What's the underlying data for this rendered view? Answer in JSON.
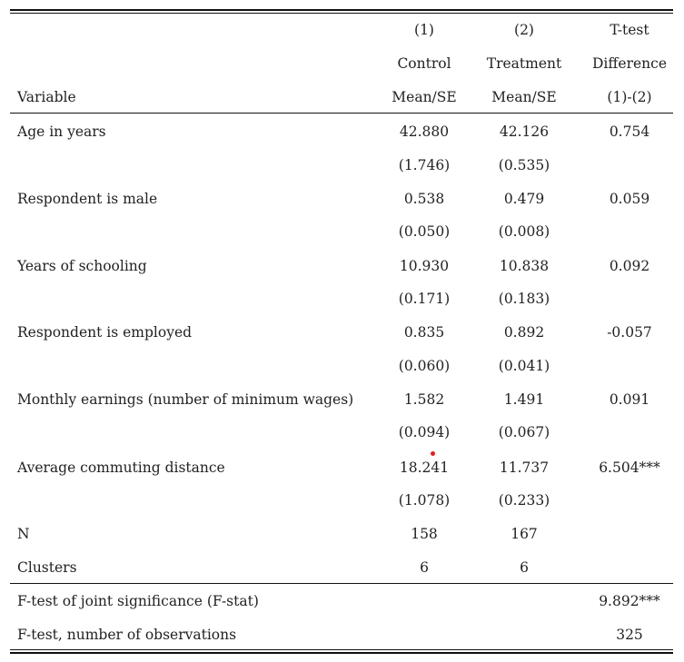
{
  "header": {
    "row1": [
      "(1)",
      "(2)",
      "T-test"
    ],
    "row2": [
      "Control",
      "Treatment",
      "Difference"
    ],
    "row3": {
      "label": "Variable",
      "cols": [
        "Mean/SE",
        "Mean/SE",
        "(1)-(2)"
      ]
    }
  },
  "rows": [
    {
      "label": "Age in years",
      "mean1": "42.880",
      "mean2": "42.126",
      "diff": "0.754",
      "se1": "(1.746)",
      "se2": "(0.535)"
    },
    {
      "label": "Respondent is male",
      "mean1": "0.538",
      "mean2": "0.479",
      "diff": "0.059",
      "se1": "(0.050)",
      "se2": "(0.008)"
    },
    {
      "label": "Years of schooling",
      "mean1": "10.930",
      "mean2": "10.838",
      "diff": "0.092",
      "se1": "(0.171)",
      "se2": "(0.183)"
    },
    {
      "label": "Respondent is employed",
      "mean1": "0.835",
      "mean2": "0.892",
      "diff": "-0.057",
      "se1": "(0.060)",
      "se2": "(0.041)"
    },
    {
      "label": "Monthly earnings (number of minimum wages)",
      "mean1": "1.582",
      "mean2": "1.491",
      "diff": "0.091",
      "se1": "(0.094)",
      "se2": "(0.067)"
    },
    {
      "label": "Average commuting distance",
      "mean1": "18.241",
      "mean2": "11.737",
      "diff": "6.504***",
      "se1": "(1.078)",
      "se2": "(0.233)"
    }
  ],
  "counts": [
    {
      "label": "N",
      "c1": "158",
      "c2": "167"
    },
    {
      "label": "Clusters",
      "c1": "6",
      "c2": "6"
    }
  ],
  "footer": [
    {
      "label": "F-test of joint significance (F-stat)",
      "value": "9.892***"
    },
    {
      "label": "F-test, number of observations",
      "value": "325"
    }
  ]
}
